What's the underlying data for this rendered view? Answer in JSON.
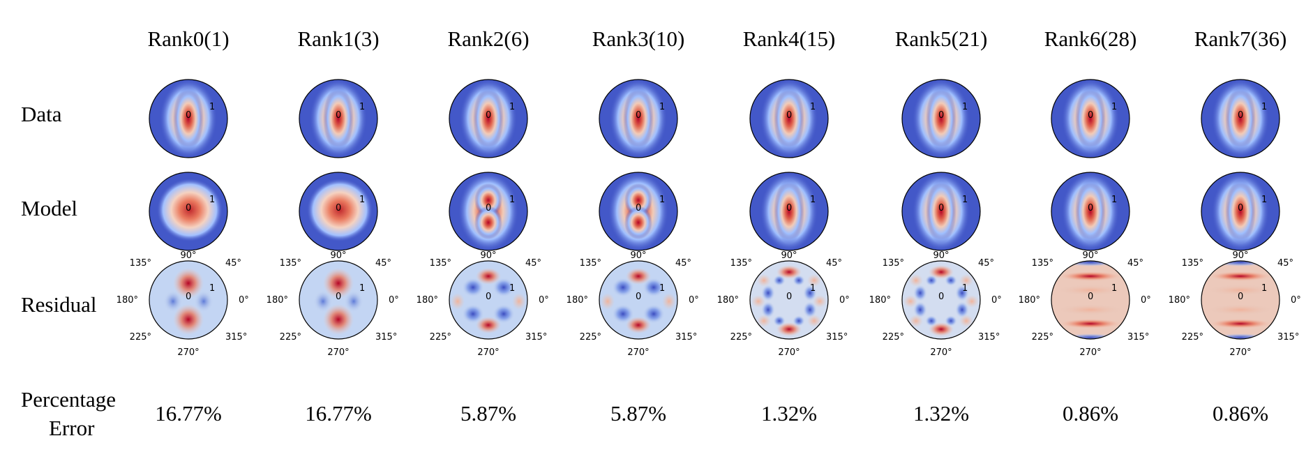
{
  "columns": [
    {
      "title": "Rank0(1)",
      "error": "16.77%",
      "model": "m0",
      "residual": "r0"
    },
    {
      "title": "Rank1(3)",
      "error": "16.77%",
      "model": "m0",
      "residual": "r0"
    },
    {
      "title": "Rank2(6)",
      "error": "5.87%",
      "model": "m1",
      "residual": "r1"
    },
    {
      "title": "Rank3(10)",
      "error": "5.87%",
      "model": "m1",
      "residual": "r1"
    },
    {
      "title": "Rank4(15)",
      "error": "1.32%",
      "model": "m2",
      "residual": "r2"
    },
    {
      "title": "Rank5(21)",
      "error": "1.32%",
      "model": "m2",
      "residual": "r2"
    },
    {
      "title": "Rank6(28)",
      "error": "0.86%",
      "model": "m3",
      "residual": "r3"
    },
    {
      "title": "Rank7(36)",
      "error": "0.86%",
      "model": "m3",
      "residual": "r3"
    }
  ],
  "rows": {
    "data": "Data",
    "model": "Model",
    "residual": "Residual",
    "error_line1": "Percentage",
    "error_line2": "Error"
  },
  "polar_labels": {
    "center": "0",
    "ring": "1",
    "angles": [
      "0°",
      "45°",
      "90°",
      "135°",
      "180°",
      "225°",
      "270°",
      "315°"
    ]
  },
  "colors": {
    "blue_dark": "#3b4cc0",
    "blue_light": "#c9d8f0",
    "red": "#b40426"
  }
}
